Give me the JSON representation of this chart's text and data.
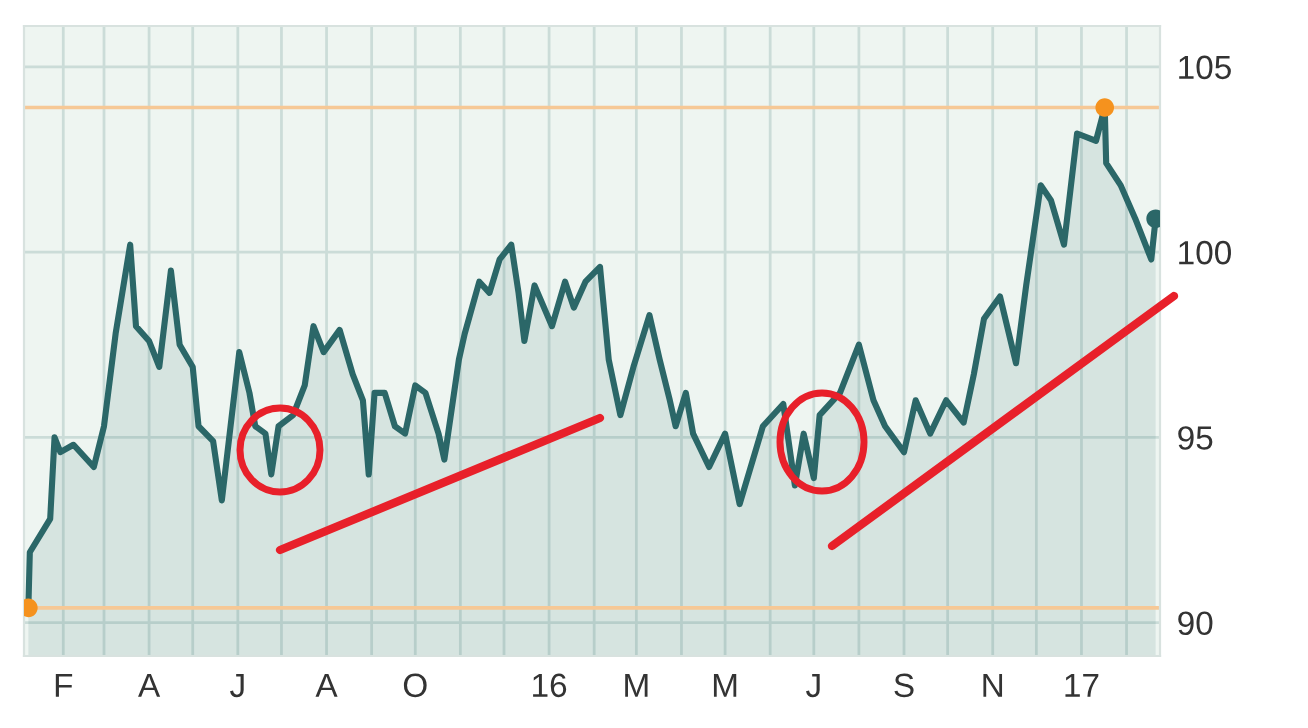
{
  "chart_data": {
    "type": "area",
    "x": [
      "2015-01-08",
      "2015-01-09",
      "2015-01-23",
      "2015-01-26",
      "2015-01-30",
      "2015-02-08",
      "2015-02-22",
      "2015-03-01",
      "2015-03-09",
      "2015-03-19",
      "2015-03-23",
      "2015-04-01",
      "2015-04-08",
      "2015-04-16",
      "2015-04-22",
      "2015-05-01",
      "2015-05-05",
      "2015-05-15",
      "2015-05-21",
      "2015-06-02",
      "2015-06-09",
      "2015-06-13",
      "2015-06-20",
      "2015-06-24",
      "2015-06-29",
      "2015-07-09",
      "2015-07-17",
      "2015-07-23",
      "2015-07-30",
      "2015-08-10",
      "2015-08-19",
      "2015-08-26",
      "2015-08-30",
      "2015-09-03",
      "2015-09-10",
      "2015-09-17",
      "2015-09-24",
      "2015-10-01",
      "2015-10-08",
      "2015-10-17",
      "2015-10-21",
      "2015-10-31",
      "2015-11-04",
      "2015-11-14",
      "2015-11-21",
      "2015-11-28",
      "2015-12-06",
      "2015-12-11",
      "2015-12-15",
      "2015-12-22",
      "2016-01-03",
      "2016-01-12",
      "2016-01-18",
      "2016-01-26",
      "2016-02-05",
      "2016-02-11",
      "2016-02-19",
      "2016-02-28",
      "2016-03-10",
      "2016-03-17",
      "2016-03-24",
      "2016-03-28",
      "2016-04-04",
      "2016-04-09",
      "2016-04-20",
      "2016-05-01",
      "2016-05-11",
      "2016-05-27",
      "2016-06-10",
      "2016-06-18",
      "2016-06-24",
      "2016-07-01",
      "2016-07-05",
      "2016-07-19",
      "2016-08-01",
      "2016-08-11",
      "2016-08-19",
      "2016-09-01",
      "2016-09-09",
      "2016-09-19",
      "2016-09-30",
      "2016-10-12",
      "2016-10-19",
      "2016-10-26",
      "2016-11-06",
      "2016-11-17",
      "2016-11-24",
      "2016-12-04",
      "2016-12-11",
      "2016-12-20",
      "2016-12-29",
      "2017-01-11",
      "2017-01-17",
      "2017-01-18",
      "2017-01-28",
      "2017-02-07",
      "2017-02-18",
      "2017-02-21"
    ],
    "series": [
      {
        "color": "#2b6768",
        "values": [
          90.4,
          91.9,
          92.8,
          95.0,
          94.6,
          94.8,
          94.2,
          95.3,
          97.8,
          100.2,
          98.0,
          97.6,
          96.9,
          99.5,
          97.5,
          96.9,
          95.3,
          94.9,
          93.3,
          97.3,
          96.2,
          95.3,
          95.1,
          94.0,
          95.3,
          95.6,
          96.4,
          98.0,
          97.3,
          97.9,
          96.7,
          96.0,
          94.0,
          96.2,
          96.2,
          95.3,
          95.1,
          96.4,
          96.2,
          95.1,
          94.4,
          97.1,
          97.8,
          99.2,
          98.9,
          99.8,
          100.2,
          98.9,
          97.6,
          99.1,
          98.0,
          99.2,
          98.5,
          99.2,
          99.6,
          97.1,
          95.6,
          96.9,
          98.3,
          97.1,
          96.0,
          95.3,
          96.2,
          95.1,
          94.2,
          95.1,
          93.2,
          95.3,
          95.9,
          93.7,
          95.1,
          93.9,
          95.6,
          96.2,
          97.5,
          96.0,
          95.3,
          94.6,
          96.0,
          95.1,
          96.0,
          95.4,
          96.7,
          98.2,
          98.8,
          97.0,
          99.1,
          101.8,
          101.4,
          100.2,
          103.2,
          103.0,
          103.9,
          102.4,
          101.8,
          100.9,
          99.8,
          100.9
        ]
      },
      {
        "type": "scatter",
        "x": [
          "2015-01-08",
          "2017-01-17",
          "2017-02-21"
        ],
        "values": [
          90.4,
          103.9,
          100.9
        ],
        "colors": [
          "#f5921e",
          "#f5921e",
          "#2b6768"
        ]
      }
    ],
    "xlim": [
      "2015-01-05",
      "2017-02-24"
    ],
    "xticks": [
      {
        "value": "2015-02-01",
        "label": "F"
      },
      {
        "value": "2015-03-01",
        "label": null
      },
      {
        "value": "2015-04-01",
        "label": "A"
      },
      {
        "value": "2015-05-01",
        "label": null
      },
      {
        "value": "2015-06-01",
        "label": "J"
      },
      {
        "value": "2015-07-01",
        "label": null
      },
      {
        "value": "2015-08-01",
        "label": "A"
      },
      {
        "value": "2015-09-01",
        "label": null
      },
      {
        "value": "2015-10-01",
        "label": "O"
      },
      {
        "value": "2015-11-01",
        "label": null
      },
      {
        "value": "2015-12-01",
        "label": null
      },
      {
        "value": "2016-01-01",
        "label": "16"
      },
      {
        "value": "2016-02-01",
        "label": null
      },
      {
        "value": "2016-03-01",
        "label": "M"
      },
      {
        "value": "2016-04-01",
        "label": null
      },
      {
        "value": "2016-05-01",
        "label": "M"
      },
      {
        "value": "2016-06-01",
        "label": null
      },
      {
        "value": "2016-07-01",
        "label": "J"
      },
      {
        "value": "2016-08-01",
        "label": null
      },
      {
        "value": "2016-09-01",
        "label": "S"
      },
      {
        "value": "2016-10-01",
        "label": null
      },
      {
        "value": "2016-11-01",
        "label": "N"
      },
      {
        "value": "2016-12-01",
        "label": null
      },
      {
        "value": "2017-01-01",
        "label": "17"
      },
      {
        "value": "2017-02-01",
        "label": null
      }
    ],
    "ylim": [
      89.1,
      106.1
    ],
    "yticks": [
      90,
      95,
      100,
      105
    ],
    "ref_lines": [
      {
        "axis": "y",
        "value": 103.9,
        "color": "#f6c896"
      },
      {
        "axis": "y",
        "value": 90.4,
        "color": "#f6c896"
      }
    ],
    "grid": true
  }
}
